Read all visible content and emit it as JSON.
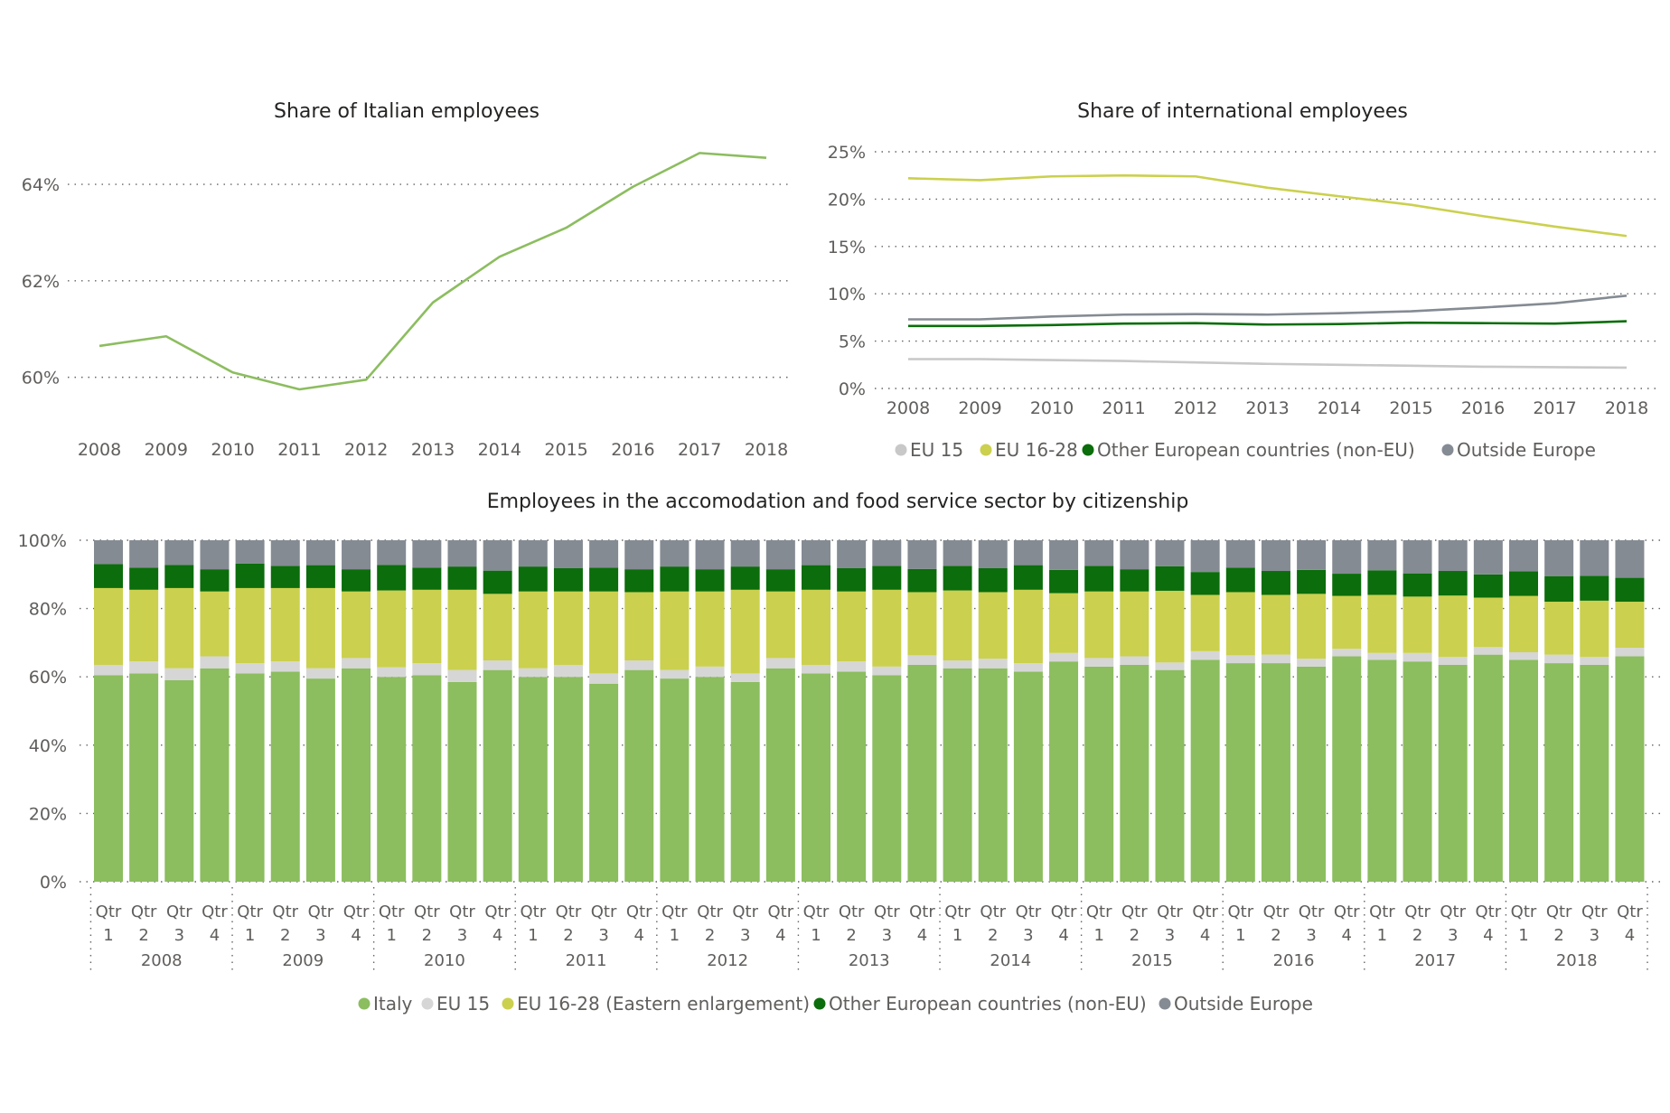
{
  "chart_data": [
    {
      "type": "line",
      "title": "Share of Italian employees",
      "x": [
        "2008",
        "2009",
        "2010",
        "2011",
        "2012",
        "2013",
        "2014",
        "2015",
        "2016",
        "2017",
        "2018"
      ],
      "y_ticks": [
        "60%",
        "62%",
        "64%"
      ],
      "ylim": [
        59.3,
        65.2
      ],
      "grid": true,
      "series": [
        {
          "color": "#8cbd5f",
          "values": [
            60.65,
            60.85,
            60.1,
            59.75,
            59.95,
            61.55,
            62.5,
            63.1,
            63.95,
            64.65,
            64.55
          ]
        }
      ]
    },
    {
      "type": "line",
      "title": "Share of international employees",
      "x": [
        "2008",
        "2009",
        "2010",
        "2011",
        "2012",
        "2013",
        "2014",
        "2015",
        "2016",
        "2017",
        "2018"
      ],
      "y_ticks": [
        "0%",
        "5%",
        "10%",
        "15%",
        "20%",
        "25%"
      ],
      "ylim": [
        0,
        25
      ],
      "grid": true,
      "legend_position": "bottom",
      "series": [
        {
          "name": "EU 15",
          "color": "#c8c8c8",
          "values": [
            3.1,
            3.1,
            3.0,
            2.9,
            2.75,
            2.6,
            2.5,
            2.4,
            2.3,
            2.25,
            2.2
          ]
        },
        {
          "name": "EU 16-28",
          "color": "#cbd04e",
          "values": [
            22.2,
            22.0,
            22.4,
            22.5,
            22.4,
            21.2,
            20.3,
            19.4,
            18.2,
            17.1,
            16.1
          ]
        },
        {
          "name": "Other European countries (non-EU)",
          "color": "#0b6d0b",
          "values": [
            6.6,
            6.6,
            6.7,
            6.85,
            6.9,
            6.75,
            6.8,
            6.95,
            6.9,
            6.85,
            7.1
          ]
        },
        {
          "name": "Outside Europe",
          "color": "#858b93",
          "values": [
            7.3,
            7.3,
            7.6,
            7.8,
            7.85,
            7.8,
            7.95,
            8.15,
            8.55,
            9.0,
            9.8
          ]
        }
      ]
    },
    {
      "type": "bar",
      "stacked": true,
      "title": "Employees in the accomodation and food service sector by citizenship",
      "y_ticks": [
        "0%",
        "20%",
        "40%",
        "60%",
        "80%",
        "100%"
      ],
      "ylim": [
        0,
        100
      ],
      "grid": true,
      "legend_position": "bottom",
      "quarter_label": "Qtr",
      "quarters": [
        "1",
        "2",
        "3",
        "4"
      ],
      "years": [
        "2008",
        "2009",
        "2010",
        "2011",
        "2012",
        "2013",
        "2014",
        "2015",
        "2016",
        "2017",
        "2018"
      ],
      "series": [
        {
          "name": "Italy",
          "color": "#8cbd5f",
          "values": [
            60.5,
            61.0,
            59.0,
            62.5,
            61.0,
            61.5,
            59.5,
            62.5,
            60.0,
            60.5,
            58.5,
            62.0,
            60.0,
            60.0,
            58.0,
            62.0,
            59.5,
            60.0,
            58.5,
            62.5,
            61.0,
            61.5,
            60.5,
            63.5,
            62.5,
            62.5,
            61.5,
            64.5,
            63.0,
            63.5,
            62.0,
            65.0,
            64.0,
            64.0,
            63.0,
            66.0,
            65.0,
            64.5,
            63.5,
            66.5,
            65.0,
            64.0,
            63.5,
            66.0
          ]
        },
        {
          "name": "EU 15",
          "color": "#d6d6d6",
          "values": [
            3.0,
            3.5,
            3.5,
            3.5,
            3.0,
            3.0,
            3.0,
            3.0,
            2.8,
            3.5,
            3.5,
            2.8,
            2.5,
            3.5,
            3.0,
            2.8,
            2.5,
            3.0,
            2.5,
            3.0,
            2.5,
            3.0,
            2.5,
            2.8,
            2.3,
            2.8,
            2.5,
            2.5,
            2.5,
            2.5,
            2.2,
            2.5,
            2.3,
            2.5,
            2.3,
            2.2,
            2.0,
            2.5,
            2.3,
            2.2,
            2.2,
            2.5,
            2.3,
            2.5
          ]
        },
        {
          "name": "EU 16-28 (Eastern enlargement)",
          "color": "#cbd04e",
          "values": [
            22.5,
            21.0,
            23.5,
            19.0,
            22.0,
            21.5,
            23.5,
            19.5,
            22.5,
            21.5,
            23.5,
            19.5,
            22.5,
            21.5,
            24.0,
            20.0,
            23.0,
            22.0,
            24.5,
            19.5,
            22.0,
            20.5,
            22.5,
            18.5,
            20.5,
            19.5,
            21.5,
            17.5,
            19.5,
            19.0,
            21.0,
            16.5,
            18.5,
            17.5,
            19.0,
            15.5,
            17.0,
            16.5,
            18.0,
            14.5,
            16.5,
            15.5,
            16.5,
            13.5
          ]
        },
        {
          "name": "Other European countries (non-EU)",
          "color": "#0b6d0b",
          "values": [
            7.0,
            6.5,
            6.8,
            6.5,
            7.2,
            6.5,
            6.7,
            6.5,
            7.5,
            6.5,
            6.8,
            6.8,
            7.3,
            6.8,
            7.0,
            6.7,
            7.3,
            6.5,
            6.8,
            6.5,
            7.2,
            6.8,
            7.0,
            6.8,
            7.2,
            7.0,
            7.2,
            6.8,
            7.5,
            6.5,
            7.2,
            6.7,
            7.2,
            7.0,
            7.0,
            6.5,
            7.2,
            6.8,
            7.2,
            6.8,
            7.2,
            7.5,
            7.3,
            7.0
          ]
        },
        {
          "name": "Outside Europe",
          "color": "#858b93",
          "values": [
            7.0,
            8.0,
            7.2,
            8.5,
            6.8,
            7.5,
            7.3,
            8.5,
            7.2,
            8.0,
            7.7,
            8.9,
            7.7,
            8.2,
            8.0,
            8.5,
            7.7,
            8.5,
            7.7,
            8.5,
            7.3,
            8.2,
            7.5,
            8.4,
            7.5,
            8.2,
            7.3,
            8.7,
            7.5,
            8.5,
            7.6,
            9.1,
            7.9,
            9.0,
            8.7,
            9.8,
            8.8,
            9.7,
            9.0,
            10.0,
            9.1,
            10.5,
            10.4,
            11.0
          ]
        }
      ]
    }
  ]
}
